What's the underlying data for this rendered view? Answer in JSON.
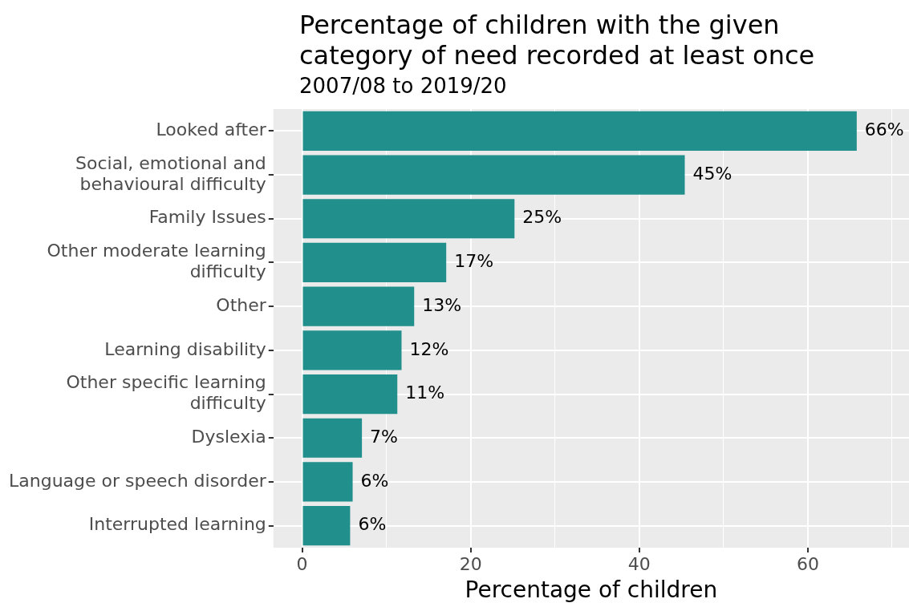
{
  "chart_data": {
    "type": "bar",
    "orientation": "horizontal",
    "title": "Percentage of children with the given category of need recorded at least once",
    "subtitle": "2007/08 to 2019/20",
    "xlabel": "Percentage of children",
    "categories": [
      "Looked after",
      "Social, emotional and behavioural difficulty",
      "Family Issues",
      "Other moderate learning difficulty",
      "Other",
      "Learning disability",
      "Other specific learning difficulty",
      "Dyslexia",
      "Language or speech disorder",
      "Interrupted learning"
    ],
    "values": [
      65.8,
      45.4,
      25.2,
      17.1,
      13.3,
      11.8,
      11.3,
      7.1,
      6.0,
      5.7
    ],
    "value_labels": [
      "66%",
      "45%",
      "25%",
      "17%",
      "13%",
      "12%",
      "11%",
      "7%",
      "6%",
      "6%"
    ],
    "color": "#21908c",
    "xlim": [
      -3.4,
      72
    ],
    "xticks": [
      0,
      {
        "value": 10,
        "label": null
      },
      20,
      {
        "value": 30,
        "label": null
      },
      40,
      {
        "value": 50,
        "label": null
      },
      60,
      {
        "value": 70,
        "label": null
      }
    ],
    "grid": true,
    "legend": false
  }
}
